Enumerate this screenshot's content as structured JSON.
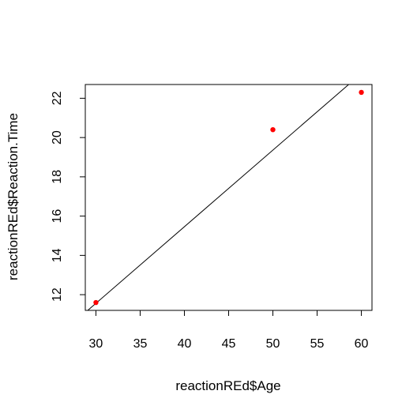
{
  "chart_data": {
    "type": "scatter",
    "title": "",
    "xlabel": "reactionREd$Age",
    "ylabel": "reactionREd$Reaction.Time",
    "xlim": [
      28.8,
      61.2
    ],
    "ylim": [
      11.2,
      22.7
    ],
    "xticks": [
      30,
      35,
      40,
      45,
      50,
      55,
      60
    ],
    "yticks": [
      12,
      14,
      16,
      18,
      20,
      22
    ],
    "grid": false,
    "legend": "none",
    "point_color": "#ff0000",
    "line_color": "#000000",
    "points": [
      {
        "x": 30,
        "y": 11.6
      },
      {
        "x": 50,
        "y": 20.4
      },
      {
        "x": 60,
        "y": 22.3
      }
    ],
    "fit_line": {
      "intercept": -0.14,
      "slope": 0.39
    }
  }
}
